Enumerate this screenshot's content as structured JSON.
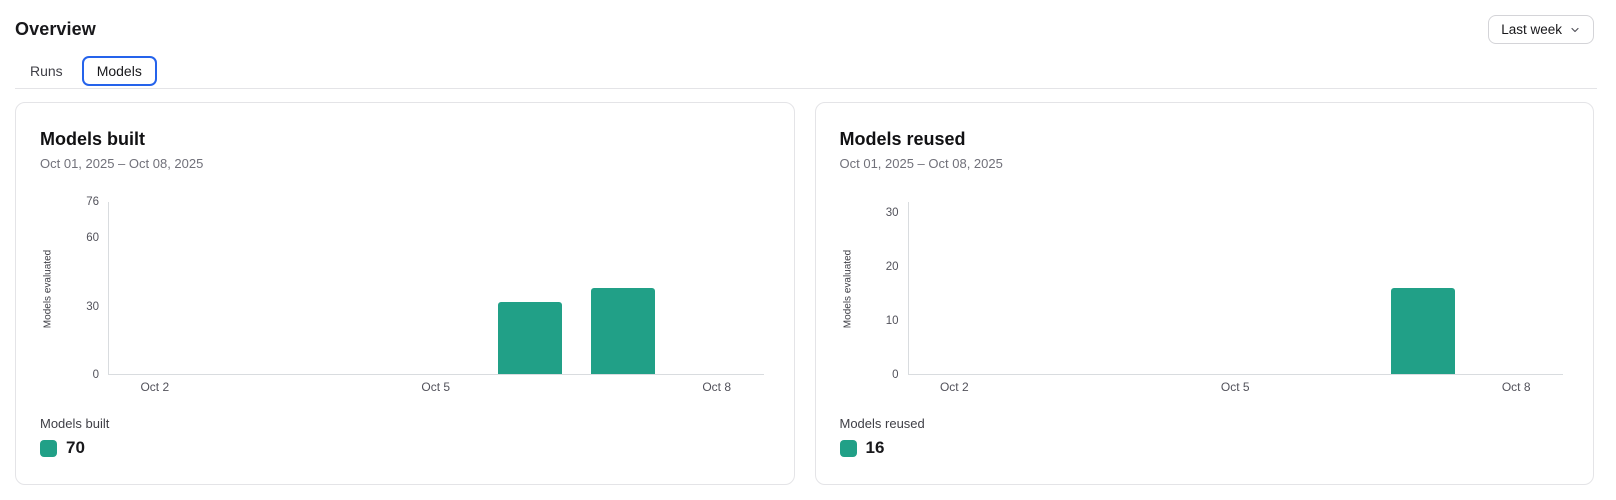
{
  "page": {
    "title": "Overview"
  },
  "header": {
    "range_selector": {
      "label": "Last week",
      "icon": "chevron-down-icon"
    }
  },
  "tabs": [
    {
      "label": "Runs",
      "active": false
    },
    {
      "label": "Models",
      "active": true
    }
  ],
  "colors": {
    "bar_green": "#21a087",
    "tab_active_border": "#2563eb",
    "axis_line": "#d9dcdf",
    "muted_text": "#71717a"
  },
  "chart_data": [
    {
      "type": "bar",
      "title": "Models built",
      "date_range": "Oct 01, 2025 – Oct 08, 2025",
      "ylabel": "Models evaluated",
      "ylim": [
        0,
        76
      ],
      "yticks": [
        0,
        30,
        60,
        76
      ],
      "xticks": [
        "Oct 2",
        "Oct 5",
        "Oct 8"
      ],
      "x_domain": [
        "Oct 1",
        "Oct 8"
      ],
      "grid": false,
      "bars": [
        {
          "date": "Oct 6",
          "value": 32
        },
        {
          "date": "Oct 7",
          "value": 38
        }
      ],
      "legend": {
        "label": "Models built",
        "total": 70,
        "position": "bottom-left"
      }
    },
    {
      "type": "bar",
      "title": "Models reused",
      "date_range": "Oct 01, 2025 – Oct 08, 2025",
      "ylabel": "Models evaluated",
      "ylim": [
        0,
        32
      ],
      "yticks": [
        0,
        10,
        20,
        30
      ],
      "xticks": [
        "Oct 2",
        "Oct 5",
        "Oct 8"
      ],
      "x_domain": [
        "Oct 1",
        "Oct 8"
      ],
      "grid": false,
      "bars": [
        {
          "date": "Oct 7",
          "value": 16
        }
      ],
      "legend": {
        "label": "Models reused",
        "total": 16,
        "position": "bottom-left"
      }
    }
  ]
}
